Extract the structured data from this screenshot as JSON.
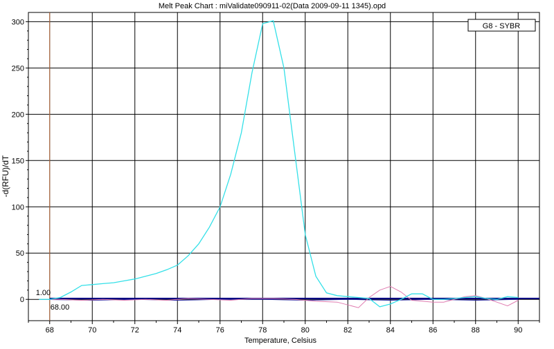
{
  "chart_data": {
    "type": "line",
    "title": "Melt Peak Chart : miValidate090911-02(Data 2009-09-11 1345).opd",
    "xlabel": "Temperature, Celsius",
    "ylabel": "-d(RFU)/dT",
    "xlim": [
      67,
      91
    ],
    "ylim": [
      -23,
      310
    ],
    "xticks": [
      68,
      70,
      72,
      74,
      76,
      78,
      80,
      82,
      84,
      86,
      88,
      90
    ],
    "yticks": [
      0,
      50,
      100,
      150,
      200,
      250,
      300
    ],
    "grid": true,
    "legend": {
      "label": "G8 - SYBR",
      "position": "top-right"
    },
    "threshold": {
      "value": 1.0,
      "label": "1.00",
      "color": "#000080"
    },
    "cursor": {
      "x": 68.0,
      "label": "68.00",
      "color": "#c07040"
    },
    "series": [
      {
        "name": "G8 - SYBR",
        "color": "#33e0e8",
        "x": [
          67.5,
          68.0,
          68.5,
          69.0,
          69.5,
          70.0,
          70.5,
          71.0,
          71.5,
          72.0,
          72.5,
          73.0,
          73.5,
          74.0,
          74.5,
          75.0,
          75.5,
          76.0,
          76.5,
          77.0,
          77.5,
          78.0,
          78.5,
          79.0,
          79.5,
          80.0,
          80.5,
          81.0,
          81.5,
          82.0,
          82.5,
          83.0,
          83.5,
          84.0,
          84.5,
          85.0,
          85.5,
          86.0,
          86.5,
          87.0,
          87.5,
          88.0,
          88.5,
          89.0,
          89.5,
          90.0
        ],
        "values": [
          0,
          0,
          2,
          8,
          15,
          16,
          17,
          18,
          20,
          22,
          25,
          28,
          32,
          37,
          47,
          60,
          78,
          100,
          135,
          180,
          245,
          298,
          301,
          250,
          160,
          70,
          25,
          7,
          4,
          3,
          2,
          1,
          -8,
          -5,
          0,
          6,
          6,
          0,
          0,
          1,
          2,
          3,
          1,
          0,
          3,
          2
        ]
      },
      {
        "name": "",
        "color": "#e07cb0",
        "x": [
          67.5,
          68.5,
          69.5,
          70.5,
          71.5,
          72.5,
          73.5,
          74.5,
          75.5,
          76.5,
          77.5,
          78.5,
          79.5,
          80.5,
          81.5,
          82.0,
          82.5,
          83.0,
          83.5,
          84.0,
          84.5,
          85.0,
          85.5,
          86.0,
          86.5,
          87.0,
          87.5,
          88.0,
          88.5,
          89.0,
          89.5,
          90.0
        ],
        "values": [
          0,
          0,
          -1,
          0,
          -1,
          0,
          -1,
          1,
          0,
          -1,
          1,
          1,
          0,
          -2,
          -3,
          -6,
          -9,
          2,
          10,
          14,
          8,
          -1,
          -2,
          -3,
          -3,
          0,
          3,
          4,
          1,
          -3,
          -7,
          -1
        ]
      },
      {
        "name": "",
        "color": "#2020a0",
        "x": [
          67.5,
          70,
          72,
          74,
          76,
          78,
          80,
          82,
          84,
          86,
          88,
          90
        ],
        "values": [
          0,
          -1,
          0,
          -1,
          0,
          0,
          -1,
          0,
          -1,
          0,
          -1,
          0
        ]
      }
    ]
  }
}
